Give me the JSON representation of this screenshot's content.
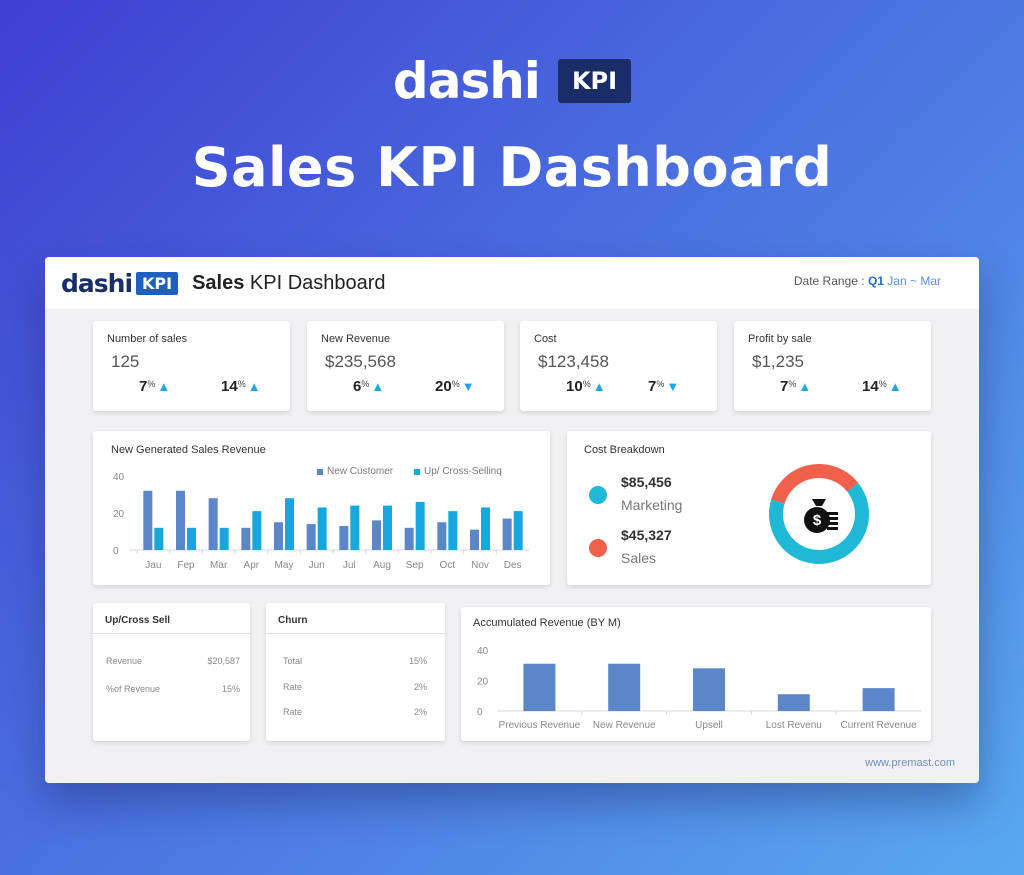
{
  "hero": {
    "logo_text": "dashi",
    "logo_badge": "KPI",
    "title": "Sales KPI Dashboard"
  },
  "header": {
    "logo_text": "dashi",
    "logo_badge": "KPI",
    "title_bold": "Sales",
    "title_rest": " KPI Dashboard",
    "date_label": "Date Range :",
    "date_quarter": "Q1",
    "date_months": "Jan ~ Mar"
  },
  "kpis": [
    {
      "label": "Number of sales",
      "value": "125",
      "pct1": "7",
      "dir1": "up",
      "pct2": "14",
      "dir2": "up"
    },
    {
      "label": "New Revenue",
      "value": "$235,568",
      "pct1": "6",
      "dir1": "up",
      "pct2": "20",
      "dir2": "down"
    },
    {
      "label": "Cost",
      "value": "$123,458",
      "pct1": "10",
      "dir1": "up",
      "pct2": "7",
      "dir2": "down"
    },
    {
      "label": "Profit by sale",
      "value": "$1,235",
      "pct1": "7",
      "dir1": "up",
      "pct2": "14",
      "dir2": "up"
    }
  ],
  "pct_symbol": "%",
  "cost_breakdown": {
    "title": "Cost Breakdown",
    "items": [
      {
        "value": "$85,456",
        "name": "Marketing",
        "color": "#1fb8d6"
      },
      {
        "value": "$45,327",
        "name": "Sales",
        "color": "#f0604a"
      }
    ]
  },
  "upcross": {
    "title": "Up/Cross Sell",
    "rows": [
      {
        "label": "Revenue",
        "value": "$20,587"
      },
      {
        "label": "%of Revenue",
        "value": "15%"
      }
    ]
  },
  "churn": {
    "title": "Churn",
    "rows": [
      {
        "label": "Total",
        "value": "15%"
      },
      {
        "label": "Rate",
        "value": "2%"
      },
      {
        "label": "Rate",
        "value": "2%"
      }
    ]
  },
  "footer_url": "www.premast.com",
  "chart_data": [
    {
      "type": "bar",
      "title": "New Generated Sales Revenue",
      "categories": [
        "Jau",
        "Fep",
        "Mar",
        "Apr",
        "May",
        "Jun",
        "Jul",
        "Aug",
        "Sep",
        "Oct",
        "Nov",
        "Des"
      ],
      "series": [
        {
          "name": "New Customer",
          "color": "#5b87c9",
          "values": [
            32,
            32,
            28,
            12,
            15,
            14,
            13,
            16,
            12,
            15,
            11,
            17
          ]
        },
        {
          "name": "Up/ Cross-Sellinq",
          "color": "#15a8df",
          "values": [
            12,
            12,
            12,
            21,
            28,
            23,
            24,
            24,
            26,
            21,
            23,
            21
          ]
        }
      ],
      "ylim": [
        0,
        40
      ],
      "yticks": [
        0,
        20,
        40
      ],
      "grid": false,
      "legend": "top-right"
    },
    {
      "type": "bar",
      "title": "Accumulated Revenue (BY M)",
      "categories": [
        "Previous Revenue",
        "New Revenue",
        "Upsell",
        "Lost Revenu",
        "Current Revenue"
      ],
      "series": [
        {
          "name": "",
          "color": "#5b87c9",
          "values": [
            31,
            31,
            28,
            11,
            15
          ]
        }
      ],
      "ylim": [
        0,
        40
      ],
      "yticks": [
        0,
        20,
        40
      ],
      "grid": false
    },
    {
      "type": "pie",
      "title": "Cost Breakdown",
      "labels": [
        "Marketing",
        "Sales"
      ],
      "values": [
        85456,
        45327
      ],
      "colors": [
        "#1fb8d6",
        "#f0604a"
      ],
      "donut": true
    }
  ]
}
